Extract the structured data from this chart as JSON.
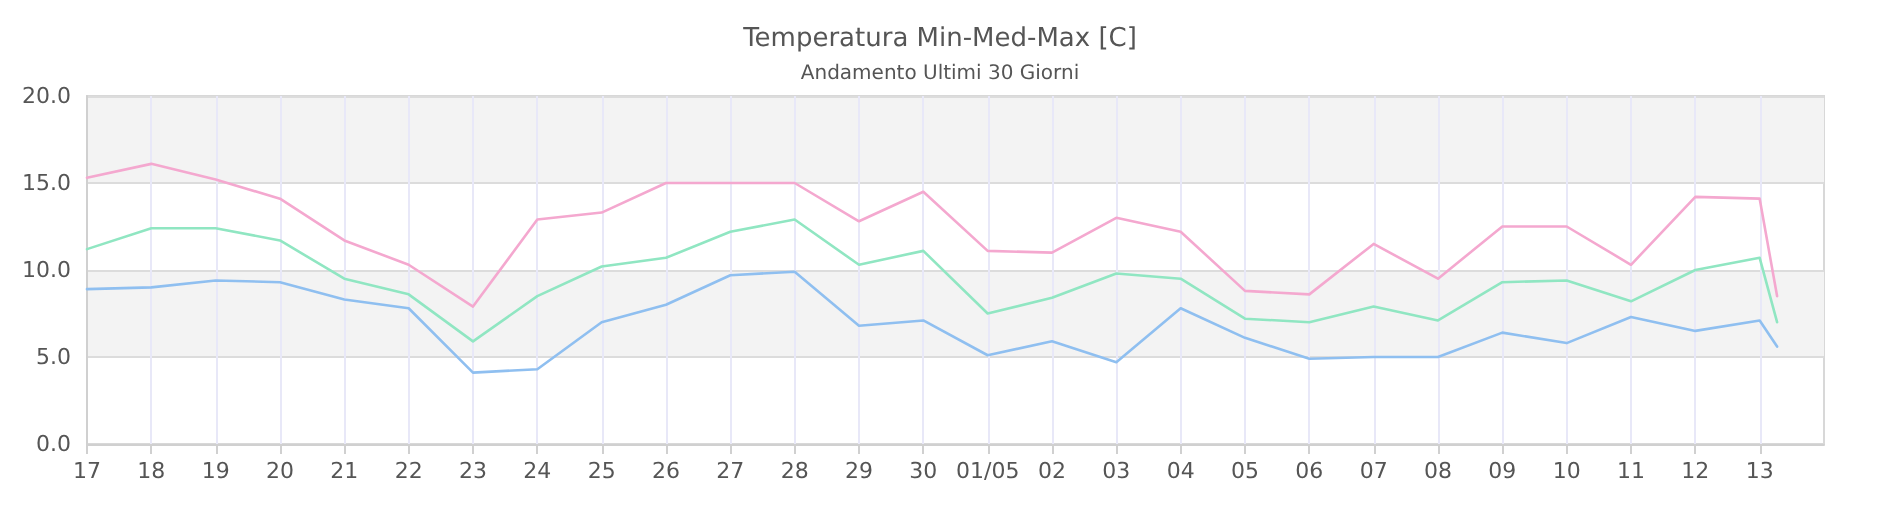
{
  "chart_data": {
    "type": "line",
    "title": "Temperatura Min-Med-Max [C]",
    "subtitle": "Andamento Ultimi 30 Giorni",
    "x": [
      "--04-17",
      "--04-18",
      "--04-19",
      "--04-20",
      "--04-21",
      "--04-22",
      "--04-23",
      "--04-24",
      "--04-25",
      "--04-26",
      "--04-27",
      "--04-28",
      "--04-29",
      "--04-30",
      "--05-01",
      "--05-02",
      "--05-03",
      "--05-04",
      "--05-05",
      "--05-06",
      "--05-07",
      "--05-08",
      "--05-09",
      "--05-10",
      "--05-11",
      "--05-12",
      "--05-13",
      "--05-13T06:30"
    ],
    "xlim": [
      "--04-17",
      "--05-14"
    ],
    "xticks": [
      {
        "value": "--04-17",
        "label": "17"
      },
      {
        "value": "--04-18",
        "label": "18"
      },
      {
        "value": "--04-19",
        "label": "19"
      },
      {
        "value": "--04-20",
        "label": "20"
      },
      {
        "value": "--04-21",
        "label": "21"
      },
      {
        "value": "--04-22",
        "label": "22"
      },
      {
        "value": "--04-23",
        "label": "23"
      },
      {
        "value": "--04-24",
        "label": "24"
      },
      {
        "value": "--04-25",
        "label": "25"
      },
      {
        "value": "--04-26",
        "label": "26"
      },
      {
        "value": "--04-27",
        "label": "27"
      },
      {
        "value": "--04-28",
        "label": "28"
      },
      {
        "value": "--04-29",
        "label": "29"
      },
      {
        "value": "--04-30",
        "label": "30"
      },
      {
        "value": "--05-01",
        "label": "01/05"
      },
      {
        "value": "--05-02",
        "label": "02"
      },
      {
        "value": "--05-03",
        "label": "03"
      },
      {
        "value": "--05-04",
        "label": "04"
      },
      {
        "value": "--05-05",
        "label": "05"
      },
      {
        "value": "--05-06",
        "label": "06"
      },
      {
        "value": "--05-07",
        "label": "07"
      },
      {
        "value": "--05-08",
        "label": "08"
      },
      {
        "value": "--05-09",
        "label": "09"
      },
      {
        "value": "--05-10",
        "label": "10"
      },
      {
        "value": "--05-11",
        "label": "11"
      },
      {
        "value": "--05-12",
        "label": "12"
      },
      {
        "value": "--05-13",
        "label": "13"
      }
    ],
    "ylim": [
      0,
      20
    ],
    "yticks": [
      {
        "value": 0,
        "label": "0.0"
      },
      {
        "value": 5,
        "label": "5.0"
      },
      {
        "value": 10,
        "label": "10.0"
      },
      {
        "value": 15,
        "label": "15.0"
      },
      {
        "value": 20,
        "label": "20.0"
      }
    ],
    "grid": true,
    "marker": "none",
    "line_style": "solid",
    "series": [
      {
        "color": "#f4a8cf",
        "values": [
          15.3,
          16.1,
          15.2,
          14.1,
          11.7,
          10.3,
          7.9,
          12.9,
          13.3,
          15.0,
          15.0,
          15.0,
          12.8,
          14.5,
          11.1,
          11.0,
          13.0,
          12.2,
          8.8,
          8.6,
          11.5,
          9.5,
          12.5,
          12.5,
          10.3,
          14.2,
          14.1,
          8.5
        ]
      },
      {
        "color": "#90e6c2",
        "values": [
          11.2,
          12.4,
          12.4,
          11.7,
          9.5,
          8.6,
          5.9,
          8.5,
          10.2,
          10.7,
          12.2,
          12.9,
          10.3,
          11.1,
          7.5,
          8.4,
          9.8,
          9.5,
          7.2,
          7.0,
          7.9,
          7.1,
          9.3,
          9.4,
          8.2,
          10.0,
          10.7,
          7.0
        ]
      },
      {
        "color": "#8fbff0",
        "values": [
          8.9,
          9.0,
          9.4,
          9.3,
          8.3,
          7.8,
          4.1,
          4.3,
          7.0,
          8.0,
          9.7,
          9.9,
          6.8,
          7.1,
          5.1,
          5.9,
          4.7,
          7.8,
          6.1,
          4.9,
          5.0,
          5.0,
          6.4,
          5.8,
          7.3,
          6.5,
          7.1,
          5.6
        ]
      }
    ]
  }
}
